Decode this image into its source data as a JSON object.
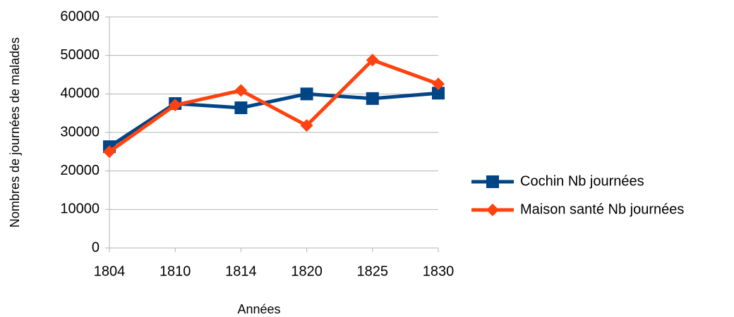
{
  "chart_data": {
    "type": "line",
    "xlabel": "Années",
    "ylabel": "Nombres de journées de malades",
    "categories": [
      "1804",
      "1810",
      "1814",
      "1820",
      "1825",
      "1830"
    ],
    "series": [
      {
        "name": "Cochin Nb journées",
        "color": "#004586",
        "marker": "square",
        "values": [
          26300,
          37500,
          36400,
          40000,
          38800,
          40200
        ]
      },
      {
        "name": "Maison santé Nb journées",
        "color": "#ff420e",
        "marker": "diamond",
        "values": [
          25000,
          37100,
          40900,
          31800,
          48800,
          42600
        ]
      }
    ],
    "ylim": [
      0,
      60000
    ],
    "yticks": [
      0,
      10000,
      20000,
      30000,
      40000,
      50000,
      60000
    ],
    "grid": true,
    "legend": "right"
  }
}
